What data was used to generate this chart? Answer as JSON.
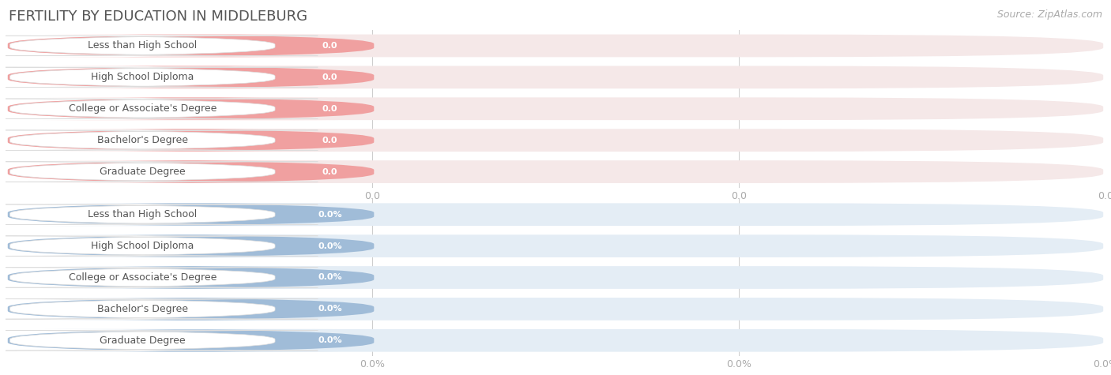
{
  "title": "FERTILITY BY EDUCATION IN MIDDLEBURG",
  "source": "Source: ZipAtlas.com",
  "categories": [
    "Less than High School",
    "High School Diploma",
    "College or Associate's Degree",
    "Bachelor's Degree",
    "Graduate Degree"
  ],
  "top_values": [
    0.0,
    0.0,
    0.0,
    0.0,
    0.0
  ],
  "bottom_values": [
    0.0,
    0.0,
    0.0,
    0.0,
    0.0
  ],
  "top_bar_color": "#f0a0a0",
  "top_row_bg": "#f5e8e8",
  "bottom_bar_color": "#a0bcd8",
  "bottom_row_bg": "#e4edf5",
  "label_text_color": "#555555",
  "value_text_color": "#ffffff",
  "grid_color": "#cccccc",
  "bg_color": "#ffffff",
  "panel_bg": "#f9f9f9",
  "title_color": "#555555",
  "source_color": "#aaaaaa",
  "tick_color": "#aaaaaa",
  "fig_width": 14.06,
  "fig_height": 4.75,
  "title_fontsize": 13,
  "source_fontsize": 9,
  "label_fontsize": 9,
  "value_fontsize": 8,
  "tick_fontsize": 9
}
